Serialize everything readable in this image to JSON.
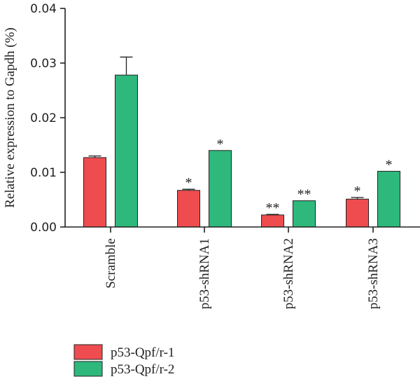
{
  "chart_data": {
    "type": "bar",
    "title": "",
    "xlabel": "",
    "ylabel": "Relative expression to Gapdh (%)",
    "ylim": [
      0,
      0.04
    ],
    "yticks": [
      "0.00",
      "0.01",
      "0.02",
      "0.03",
      "0.04"
    ],
    "grid": false,
    "legend_position": "bottom-left",
    "categories": [
      "Scramble",
      "p53-shRNA1",
      "p53-shRNA2",
      "p53-shRNA3"
    ],
    "series": [
      {
        "name": "p53-Qpf/r-1",
        "color": "#ef4c4f",
        "values": [
          0.0127,
          0.0067,
          0.0022,
          0.0051
        ],
        "errors": [
          0.0003,
          0.0002,
          0.0001,
          0.0003
        ],
        "significance": [
          "",
          "*",
          "**",
          "*"
        ]
      },
      {
        "name": "p53-Qpf/r-2",
        "color": "#2eb87c",
        "values": [
          0.0278,
          0.014,
          0.0048,
          0.0102
        ],
        "errors": [
          0.0033,
          0,
          0,
          0
        ],
        "significance": [
          "",
          "*",
          "**",
          "*"
        ]
      }
    ]
  }
}
